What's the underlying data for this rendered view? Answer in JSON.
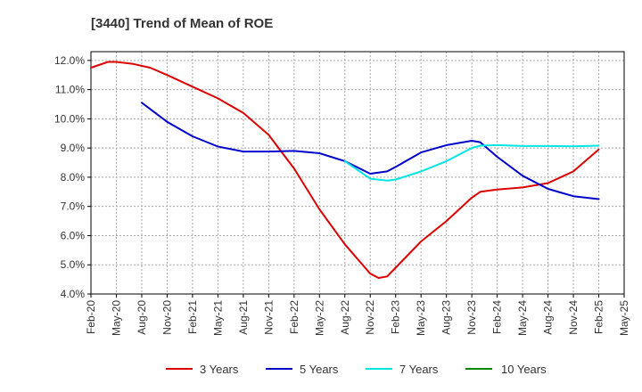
{
  "chart_data": {
    "type": "line",
    "title": "[3440]  Trend of Mean of ROE",
    "xlabel": "",
    "ylabel": "",
    "x_tick_labels": [
      "Feb-20",
      "May-20",
      "Aug-20",
      "Nov-20",
      "Feb-21",
      "May-21",
      "Aug-21",
      "Nov-21",
      "Feb-22",
      "May-22",
      "Aug-22",
      "Nov-22",
      "Feb-23",
      "May-23",
      "Aug-23",
      "Nov-23",
      "Feb-24",
      "May-24",
      "Aug-24",
      "Nov-24",
      "Feb-25",
      "May-25"
    ],
    "y_tick_labels": [
      "12.0%",
      "11.0%",
      "10.0%",
      "9.0%",
      "8.0%",
      "7.0%",
      "6.0%",
      "5.0%",
      "4.0%"
    ],
    "ylim": [
      4.0,
      12.3
    ],
    "grid": true,
    "legend_position": "bottom",
    "series": [
      {
        "name": "3 Years",
        "color": "#dd0000",
        "points": [
          [
            "Feb-20",
            11.75
          ],
          [
            "Apr-20",
            11.95
          ],
          [
            "May-20",
            11.95
          ],
          [
            "Jul-20",
            11.88
          ],
          [
            "Sep-20",
            11.75
          ],
          [
            "Nov-20",
            11.5
          ],
          [
            "Feb-21",
            11.1
          ],
          [
            "May-21",
            10.7
          ],
          [
            "Aug-21",
            10.2
          ],
          [
            "Nov-21",
            9.45
          ],
          [
            "Feb-22",
            8.3
          ],
          [
            "May-22",
            6.9
          ],
          [
            "Aug-22",
            5.7
          ],
          [
            "Nov-22",
            4.7
          ],
          [
            "Dec-22",
            4.55
          ],
          [
            "Jan-23",
            4.6
          ],
          [
            "Feb-23",
            4.9
          ],
          [
            "May-23",
            5.8
          ],
          [
            "Aug-23",
            6.5
          ],
          [
            "Nov-23",
            7.3
          ],
          [
            "Dec-23",
            7.5
          ],
          [
            "Feb-24",
            7.58
          ],
          [
            "May-24",
            7.65
          ],
          [
            "Aug-24",
            7.8
          ],
          [
            "Nov-24",
            8.2
          ],
          [
            "Feb-25",
            8.95
          ]
        ]
      },
      {
        "name": "5 Years",
        "color": "#0000cc",
        "points": [
          [
            "Aug-20",
            10.55
          ],
          [
            "Nov-20",
            9.9
          ],
          [
            "Feb-21",
            9.4
          ],
          [
            "May-21",
            9.05
          ],
          [
            "Aug-21",
            8.88
          ],
          [
            "Nov-21",
            8.88
          ],
          [
            "Feb-22",
            8.9
          ],
          [
            "May-22",
            8.82
          ],
          [
            "Aug-22",
            8.55
          ],
          [
            "Nov-22",
            8.12
          ],
          [
            "Jan-23",
            8.2
          ],
          [
            "Feb-23",
            8.35
          ],
          [
            "May-23",
            8.85
          ],
          [
            "Aug-23",
            9.1
          ],
          [
            "Nov-23",
            9.25
          ],
          [
            "Dec-23",
            9.2
          ],
          [
            "Feb-24",
            8.7
          ],
          [
            "May-24",
            8.05
          ],
          [
            "Aug-24",
            7.6
          ],
          [
            "Nov-24",
            7.35
          ],
          [
            "Feb-25",
            7.25
          ]
        ]
      },
      {
        "name": "7 Years",
        "color": "#00e5e5",
        "points": [
          [
            "Aug-22",
            8.55
          ],
          [
            "Nov-22",
            7.95
          ],
          [
            "Jan-23",
            7.88
          ],
          [
            "Feb-23",
            7.92
          ],
          [
            "May-23",
            8.2
          ],
          [
            "Aug-23",
            8.55
          ],
          [
            "Nov-23",
            9.0
          ],
          [
            "Dec-23",
            9.08
          ],
          [
            "Feb-24",
            9.1
          ],
          [
            "May-24",
            9.07
          ],
          [
            "Aug-24",
            9.07
          ],
          [
            "Nov-24",
            9.06
          ],
          [
            "Feb-25",
            9.08
          ]
        ]
      },
      {
        "name": "10 Years",
        "color": "#008800",
        "points": []
      }
    ]
  }
}
